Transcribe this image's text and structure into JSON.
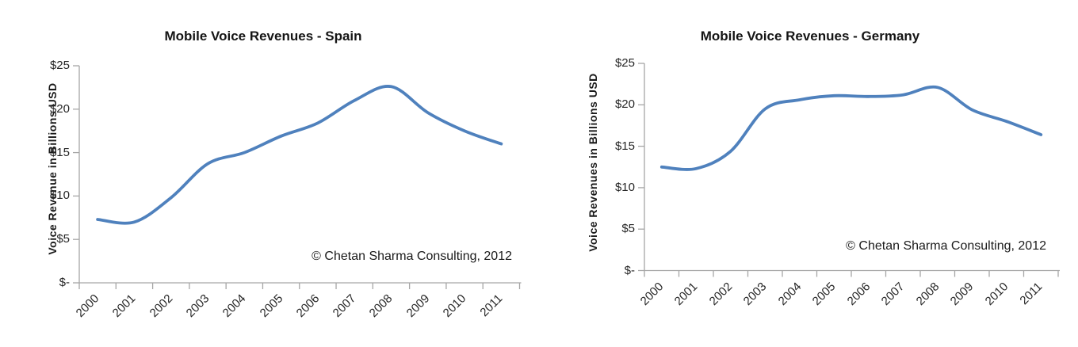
{
  "page": {
    "background": "#ffffff"
  },
  "chart_data": [
    {
      "type": "line",
      "title": "Mobile Voice Revenues - Spain",
      "ylabel": "Voice Revenue  in Billions USD",
      "annotation": "© Chetan Sharma Consulting, 2012",
      "x": [
        "2000",
        "2001",
        "2002",
        "2003",
        "2004",
        "2005",
        "2006",
        "2007",
        "2008",
        "2009",
        "2010",
        "2011"
      ],
      "values": [
        7.3,
        7.0,
        9.8,
        13.7,
        15.0,
        16.9,
        18.4,
        21.0,
        22.6,
        19.6,
        17.5,
        16.0
      ],
      "ylim": [
        0,
        25
      ],
      "y_ticks": [
        {
          "value": 25,
          "label": "$25"
        },
        {
          "value": 20,
          "label": "$20"
        },
        {
          "value": 15,
          "label": "$15"
        },
        {
          "value": 10,
          "label": "$10"
        },
        {
          "value": 5,
          "label": "$5"
        },
        {
          "value": 0,
          "label": "$-"
        }
      ],
      "line_color": "#4F81BD",
      "axis_color": "#a6a6a6",
      "grid": "off",
      "legend": "none",
      "smooth": true
    },
    {
      "type": "line",
      "title": "Mobile Voice Revenues - Germany",
      "ylabel": "Voice Revenues  in Billions USD",
      "annotation": "© Chetan Sharma Consulting, 2012",
      "x": [
        "2000",
        "2001",
        "2002",
        "2003",
        "2004",
        "2005",
        "2006",
        "2007",
        "2008",
        "2009",
        "2010",
        "2011"
      ],
      "values": [
        12.5,
        12.3,
        14.4,
        19.5,
        20.6,
        21.1,
        21.0,
        21.2,
        22.1,
        19.4,
        18.0,
        16.4
      ],
      "ylim": [
        0,
        25
      ],
      "y_ticks": [
        {
          "value": 25,
          "label": "$25"
        },
        {
          "value": 20,
          "label": "$20"
        },
        {
          "value": 15,
          "label": "$15"
        },
        {
          "value": 10,
          "label": "$10"
        },
        {
          "value": 5,
          "label": "$5"
        },
        {
          "value": 0,
          "label": "$-"
        }
      ],
      "line_color": "#4F81BD",
      "axis_color": "#a6a6a6",
      "grid": "off",
      "legend": "none",
      "smooth": true
    }
  ]
}
